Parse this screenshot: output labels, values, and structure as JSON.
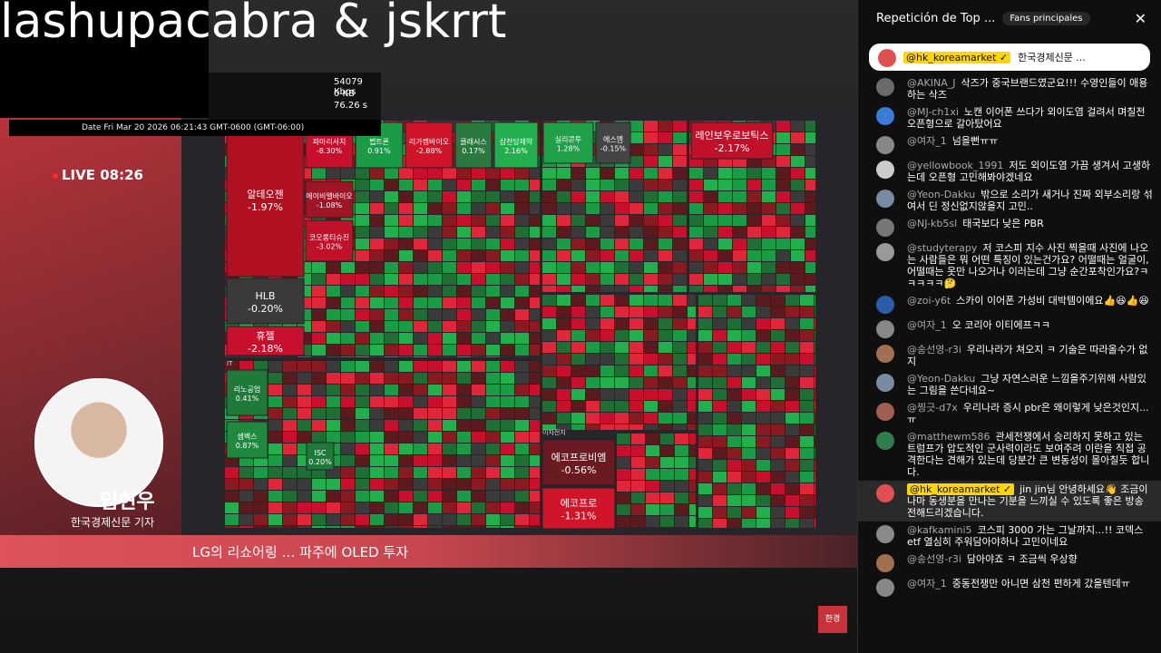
{
  "stream_overlay": {
    "title": "lashupacabra & jskrrt",
    "stats": [
      "54079 Kbps",
      "0 KB",
      "76.26 s"
    ],
    "date_label": "Date",
    "date": "Fri Mar 20 2026 06:21:43 GMT-0600 (GMT-06:00)"
  },
  "broadcast": {
    "live": "LIVE 08:26",
    "presenter_name": "임현우",
    "presenter_org": "한국경제신문 기자",
    "ticker": "LG의 리쇼어링 … 파주에 OLED 투자",
    "logo": "한경"
  },
  "treemap": {
    "sections": [
      "IT",
      "이차전지"
    ],
    "tiles": [
      {
        "name": "파마리서치",
        "change": "-8.30%"
      },
      {
        "name": "펩트론",
        "change": "0.91%"
      },
      {
        "name": "리가켐바이오",
        "change": "-2.88%"
      },
      {
        "name": "클래시스",
        "change": "0.17%"
      },
      {
        "name": "삼천당제약",
        "change": "2.16%"
      },
      {
        "name": "알테오젠",
        "change": "-1.97%"
      },
      {
        "name": "에이비엘바이오",
        "change": "-1.08%"
      },
      {
        "name": "코오롱티슈진",
        "change": "-3.02%"
      },
      {
        "name": "HLB",
        "change": "-0.20%"
      },
      {
        "name": "휴젤",
        "change": "-2.18%"
      },
      {
        "name": "실리콘투",
        "change": "1.28%"
      },
      {
        "name": "에스엠",
        "change": "-0.15%"
      },
      {
        "name": "레인보우로보틱스",
        "change": "-2.17%"
      },
      {
        "name": "리노공업",
        "change": "0.41%"
      },
      {
        "name": "셈벡스",
        "change": "0.87%"
      },
      {
        "name": "ISC",
        "change": "0.20%"
      },
      {
        "name": "에코프로비엠",
        "change": "-0.56%"
      },
      {
        "name": "에코프로",
        "change": "-1.31%"
      }
    ]
  },
  "chat": {
    "header": "Repetición de Top ...",
    "badge": "Fans principales",
    "pinned": {
      "author": "@hk_koreamarket ✓",
      "text": "한국경제신문 ..."
    },
    "messages": [
      {
        "author": "@AKINA_J",
        "text": "삭즈가 중국브랜드였군요!!! 수영인들이 애용하는 삭즈"
      },
      {
        "author": "@MJ-ch1xi",
        "text": "노캔 이어폰 쓰다가 외이도염 걸려서 며칠전 오픈형으로 갈아탔어요"
      },
      {
        "author": "@여자_1",
        "text": "넘을뻔ㅠㅠ"
      },
      {
        "author": "@yellowbook_1991",
        "text": "저도 외이도염 가끔 생겨서 고생하는데 오픈형 고민해봐야겠네요"
      },
      {
        "author": "@Yeon-Dakku",
        "text": "밖으로 소리가 새거나 진짜 외부소리랑 섞여서 딘 정신없지않을지 고민.."
      },
      {
        "author": "@NJ-kb5sl",
        "text": "태국보다 낮은 PBR"
      },
      {
        "author": "@studyterapy",
        "text": "저 코스피 지수 사진 찍을때 사진에 나오는 사람들은 뭐 어떤 특징이 있는건가요? 어떨때는 얼굴이, 어떨때는 옷만 나오거나 이러는데 그냥 순간포착인가요?ㅋㅋㅋㅋㅋ🤔"
      },
      {
        "author": "@zoi-y6t",
        "text": "스카이 이어폰 가성비 대박템이에요👍😆👍😆"
      },
      {
        "author": "@여자_1",
        "text": "오 코리아 이티에프ㅋㅋ"
      },
      {
        "author": "@송선영-r3i",
        "text": "우리나라가 쳐오지 ㅋ 기술은 따라올수가 없지"
      },
      {
        "author": "@Yeon-Dakku",
        "text": "그냥 자연스러운 느낌을주기위해 사람있는 그림을 쓴다네요~"
      },
      {
        "author": "@찡긋-d7x",
        "text": "우리나라 증시 pbr은 왜이렇게 낮은것인지...ㅠ"
      },
      {
        "author": "@matthewm586",
        "text": "관세전쟁에서 승리하지 못하고 있는 트럼프가 압도적인 군사력이라도 보여주려 이란을 직접 공격한다는 견해가 있는데 당분간 큰 변동성이 몰아칠듯 합니다."
      },
      {
        "author": "@hk_koreamarket ✓",
        "text": "jin jin님 안녕하세요👋 조금이나마 동생분을 만나는 기분을 느끼실 수 있도록 좋은 방송 전해드리겠습니다."
      },
      {
        "author": "@kafkamini5",
        "text": "코스피 3000 가는 그날까지...!! 코덱스 etf 열심히 주워담아야하나 고민이네요"
      },
      {
        "author": "@송선영-r3i",
        "text": "담아야죠 ㅋ 조금씩 우상향"
      },
      {
        "author": "@여자_1",
        "text": "중동전쟁만 아니면 삼천 편하게 갔을텐데ㅠ"
      }
    ]
  }
}
